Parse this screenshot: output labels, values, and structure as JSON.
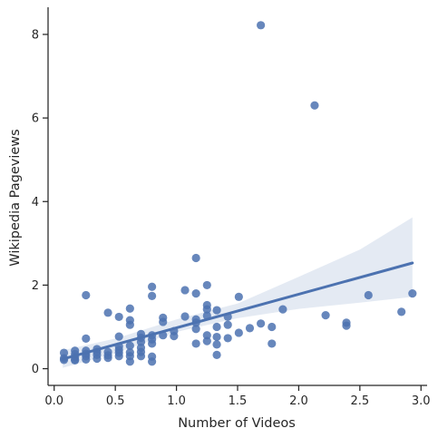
{
  "chart_data": {
    "type": "scatter",
    "title": "",
    "xlabel": "Number of Videos",
    "ylabel": "Wikipedia Pageviews",
    "xlim": [
      -0.05,
      3.05
    ],
    "ylim": [
      -0.4,
      8.65
    ],
    "x_ticks": [
      0.0,
      0.5,
      1.0,
      1.5,
      2.0,
      2.5,
      3.0
    ],
    "x_tick_labels": [
      "0.0",
      "0.5",
      "1.0",
      "1.5",
      "2.0",
      "2.5",
      "3.0"
    ],
    "y_ticks": [
      0,
      2,
      4,
      6,
      8
    ],
    "y_tick_labels": [
      "0",
      "2",
      "4",
      "6",
      "8"
    ],
    "grid": false,
    "colors": {
      "points": "#4c72b0",
      "regression_line": "#4c72b0",
      "confidence_band": "#4c72b0",
      "axes": "#262626"
    },
    "regression": {
      "x_range": [
        0.07,
        2.93
      ],
      "y_start": 0.23,
      "y_end": 2.53,
      "ci_lower": [
        [
          0.07,
          0.02
        ],
        [
          0.5,
          0.37
        ],
        [
          1.0,
          0.88
        ],
        [
          1.5,
          1.21
        ],
        [
          2.0,
          1.43
        ],
        [
          2.5,
          1.58
        ],
        [
          2.93,
          1.72
        ]
      ],
      "ci_upper": [
        [
          0.07,
          0.44
        ],
        [
          0.5,
          0.72
        ],
        [
          1.0,
          1.18
        ],
        [
          1.5,
          1.56
        ],
        [
          2.0,
          2.2
        ],
        [
          2.5,
          2.85
        ],
        [
          2.93,
          3.62
        ]
      ]
    },
    "points": [
      [
        0.08,
        0.38
      ],
      [
        0.08,
        0.25
      ],
      [
        0.08,
        0.21
      ],
      [
        0.17,
        0.43
      ],
      [
        0.17,
        0.35
      ],
      [
        0.17,
        0.28
      ],
      [
        0.17,
        0.22
      ],
      [
        0.17,
        0.2
      ],
      [
        0.26,
        1.76
      ],
      [
        0.26,
        0.72
      ],
      [
        0.26,
        0.43
      ],
      [
        0.26,
        0.36
      ],
      [
        0.26,
        0.3
      ],
      [
        0.26,
        0.22
      ],
      [
        0.35,
        0.47
      ],
      [
        0.35,
        0.4
      ],
      [
        0.35,
        0.33
      ],
      [
        0.35,
        0.24
      ],
      [
        0.44,
        1.34
      ],
      [
        0.44,
        0.4
      ],
      [
        0.44,
        0.32
      ],
      [
        0.44,
        0.26
      ],
      [
        0.53,
        1.24
      ],
      [
        0.53,
        0.77
      ],
      [
        0.53,
        0.53
      ],
      [
        0.53,
        0.45
      ],
      [
        0.53,
        0.38
      ],
      [
        0.53,
        0.3
      ],
      [
        0.62,
        1.44
      ],
      [
        0.62,
        1.16
      ],
      [
        0.62,
        1.05
      ],
      [
        0.62,
        0.55
      ],
      [
        0.62,
        0.39
      ],
      [
        0.62,
        0.3
      ],
      [
        0.62,
        0.17
      ],
      [
        0.71,
        0.83
      ],
      [
        0.71,
        0.74
      ],
      [
        0.71,
        0.64
      ],
      [
        0.71,
        0.5
      ],
      [
        0.71,
        0.4
      ],
      [
        0.71,
        0.3
      ],
      [
        0.8,
        1.96
      ],
      [
        0.8,
        1.74
      ],
      [
        0.8,
        0.8
      ],
      [
        0.8,
        0.7
      ],
      [
        0.8,
        0.6
      ],
      [
        0.8,
        0.29
      ],
      [
        0.8,
        0.17
      ],
      [
        0.89,
        1.22
      ],
      [
        0.89,
        1.12
      ],
      [
        0.89,
        0.8
      ],
      [
        0.98,
        0.9
      ],
      [
        0.98,
        0.78
      ],
      [
        1.07,
        1.88
      ],
      [
        1.07,
        1.25
      ],
      [
        1.16,
        2.65
      ],
      [
        1.16,
        1.8
      ],
      [
        1.16,
        1.18
      ],
      [
        1.16,
        1.1
      ],
      [
        1.16,
        0.95
      ],
      [
        1.16,
        0.6
      ],
      [
        1.25,
        2.0
      ],
      [
        1.25,
        1.52
      ],
      [
        1.25,
        1.42
      ],
      [
        1.25,
        1.27
      ],
      [
        1.25,
        0.8
      ],
      [
        1.25,
        0.66
      ],
      [
        1.33,
        1.4
      ],
      [
        1.33,
        1.0
      ],
      [
        1.33,
        0.76
      ],
      [
        1.33,
        0.58
      ],
      [
        1.33,
        0.33
      ],
      [
        1.42,
        1.24
      ],
      [
        1.42,
        1.05
      ],
      [
        1.42,
        0.73
      ],
      [
        1.51,
        1.72
      ],
      [
        1.51,
        0.86
      ],
      [
        1.6,
        0.97
      ],
      [
        1.69,
        8.22
      ],
      [
        1.69,
        1.08
      ],
      [
        1.78,
        1.0
      ],
      [
        1.78,
        0.6
      ],
      [
        1.87,
        1.42
      ],
      [
        2.13,
        6.3
      ],
      [
        2.22,
        1.28
      ],
      [
        2.39,
        1.1
      ],
      [
        2.39,
        1.03
      ],
      [
        2.57,
        1.76
      ],
      [
        2.84,
        1.36
      ],
      [
        2.93,
        1.8
      ]
    ]
  }
}
